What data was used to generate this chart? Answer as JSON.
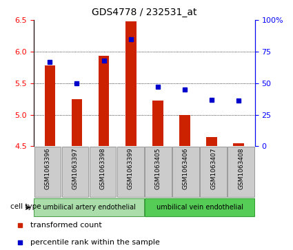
{
  "title": "GDS4778 / 232531_at",
  "samples": [
    "GSM1063396",
    "GSM1063397",
    "GSM1063398",
    "GSM1063399",
    "GSM1063405",
    "GSM1063406",
    "GSM1063407",
    "GSM1063408"
  ],
  "transformed_count": [
    5.78,
    5.25,
    5.93,
    6.48,
    5.22,
    5.0,
    4.65,
    4.55
  ],
  "percentile_rank": [
    67,
    50,
    68,
    85,
    47,
    45,
    37,
    36
  ],
  "ylim_left": [
    4.5,
    6.5
  ],
  "ylim_right": [
    0,
    100
  ],
  "yticks_left": [
    4.5,
    5.0,
    5.5,
    6.0,
    6.5
  ],
  "yticks_right": [
    0,
    25,
    50,
    75,
    100
  ],
  "ytick_right_labels": [
    "0",
    "25",
    "50",
    "75",
    "100%"
  ],
  "bar_bottom": 4.5,
  "bar_color": "#cc2200",
  "dot_color": "#0000cc",
  "grid_dotted_at": [
    5.0,
    5.5,
    6.0
  ],
  "cell_type_groups": [
    {
      "label": "umbilical artery endothelial",
      "indices": [
        0,
        1,
        2,
        3
      ],
      "color": "#aaddaa"
    },
    {
      "label": "umbilical vein endothelial",
      "indices": [
        4,
        5,
        6,
        7
      ],
      "color": "#55cc55"
    }
  ],
  "legend_items": [
    {
      "label": "transformed count",
      "color": "#cc2200"
    },
    {
      "label": "percentile rank within the sample",
      "color": "#0000cc"
    }
  ],
  "cell_type_label": "cell type",
  "sample_box_color": "#cccccc",
  "title_fontsize": 10,
  "axis_fontsize": 8,
  "label_fontsize": 7.5,
  "legend_fontsize": 8
}
